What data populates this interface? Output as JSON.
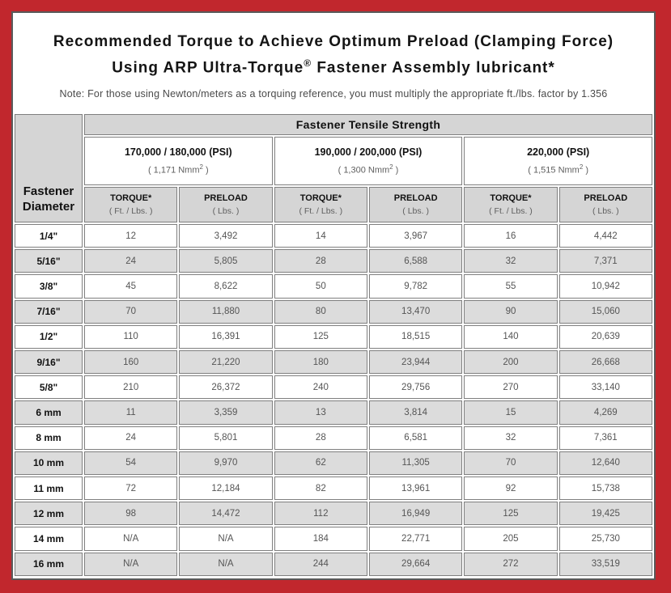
{
  "colors": {
    "frame_red": "#c1272d",
    "panel_border": "#5a5a5a",
    "header_gray": "#d5d5d5",
    "alt_row_gray": "#dcdcdc",
    "cell_border": "#7f7f7f",
    "value_text": "#555555"
  },
  "title": {
    "line1": "Recommended Torque to Achieve Optimum Preload (Clamping Force)",
    "line2_prefix": "Using ARP Ultra-Torque",
    "registered_mark": "®",
    "line2_suffix": " Fastener Assembly lubricant*",
    "note": "Note: For those using Newton/meters as a torquing reference, you must multiply the appropriate ft./lbs. factor by 1.356"
  },
  "table": {
    "corner_header_line1": "Fastener",
    "corner_header_line2": "Diameter",
    "main_header": "Fastener Tensile Strength",
    "groups": [
      {
        "psi": "170,000 / 180,000 (PSI)",
        "nmm_prefix": "( 1,171 Nmm",
        "nmm_sup": "2",
        "nmm_suffix": " )"
      },
      {
        "psi": "190,000 / 200,000 (PSI)",
        "nmm_prefix": "( 1,300 Nmm",
        "nmm_sup": "2",
        "nmm_suffix": " )"
      },
      {
        "psi": "220,000 (PSI)",
        "nmm_prefix": "( 1,515 Nmm",
        "nmm_sup": "2",
        "nmm_suffix": " )"
      }
    ],
    "column_headers": [
      {
        "label": "TORQUE*",
        "unit": "( Ft. / Lbs. )"
      },
      {
        "label": "PRELOAD",
        "unit": "( Lbs. )"
      },
      {
        "label": "TORQUE*",
        "unit": "( Ft. / Lbs. )"
      },
      {
        "label": "PRELOAD",
        "unit": "( Lbs. )"
      },
      {
        "label": "TORQUE*",
        "unit": "( Ft. / Lbs. )"
      },
      {
        "label": "PRELOAD",
        "unit": "( Lbs. )"
      }
    ],
    "rows": [
      {
        "diameter": "1/4\"",
        "values": [
          "12",
          "3,492",
          "14",
          "3,967",
          "16",
          "4,442"
        ]
      },
      {
        "diameter": "5/16\"",
        "values": [
          "24",
          "5,805",
          "28",
          "6,588",
          "32",
          "7,371"
        ]
      },
      {
        "diameter": "3/8\"",
        "values": [
          "45",
          "8,622",
          "50",
          "9,782",
          "55",
          "10,942"
        ]
      },
      {
        "diameter": "7/16\"",
        "values": [
          "70",
          "11,880",
          "80",
          "13,470",
          "90",
          "15,060"
        ]
      },
      {
        "diameter": "1/2\"",
        "values": [
          "110",
          "16,391",
          "125",
          "18,515",
          "140",
          "20,639"
        ]
      },
      {
        "diameter": "9/16\"",
        "values": [
          "160",
          "21,220",
          "180",
          "23,944",
          "200",
          "26,668"
        ]
      },
      {
        "diameter": "5/8\"",
        "values": [
          "210",
          "26,372",
          "240",
          "29,756",
          "270",
          "33,140"
        ]
      },
      {
        "diameter": "6 mm",
        "values": [
          "11",
          "3,359",
          "13",
          "3,814",
          "15",
          "4,269"
        ]
      },
      {
        "diameter": "8 mm",
        "values": [
          "24",
          "5,801",
          "28",
          "6,581",
          "32",
          "7,361"
        ]
      },
      {
        "diameter": "10 mm",
        "values": [
          "54",
          "9,970",
          "62",
          "11,305",
          "70",
          "12,640"
        ]
      },
      {
        "diameter": "11 mm",
        "values": [
          "72",
          "12,184",
          "82",
          "13,961",
          "92",
          "15,738"
        ]
      },
      {
        "diameter": "12 mm",
        "values": [
          "98",
          "14,472",
          "112",
          "16,949",
          "125",
          "19,425"
        ]
      },
      {
        "diameter": "14 mm",
        "values": [
          "N/A",
          "N/A",
          "184",
          "22,771",
          "205",
          "25,730"
        ]
      },
      {
        "diameter": "16 mm",
        "values": [
          "N/A",
          "N/A",
          "244",
          "29,664",
          "272",
          "33,519"
        ]
      }
    ]
  }
}
